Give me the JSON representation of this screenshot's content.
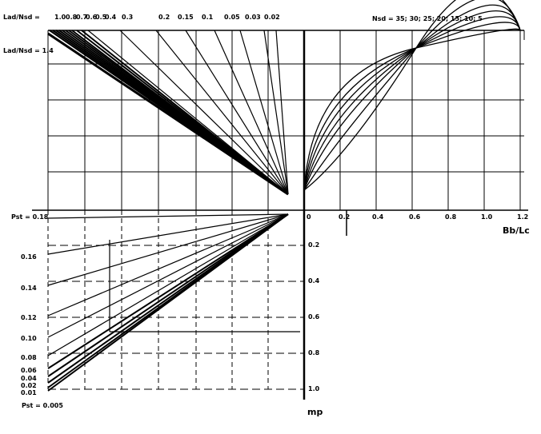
{
  "top_left": {
    "ratio_label_1": "Lad/Nsd =",
    "ratio_label_2": "Lad/Nsd = 1.4",
    "ratio_values": [
      "1.0",
      "0.8",
      "0.7",
      "0.6",
      "0.5",
      "0.4",
      "0.3",
      "0.2",
      "0.15",
      "0.1",
      "0.05",
      "0.03",
      "0.02"
    ]
  },
  "top_right": {
    "n_label": "Nsd = 35; 30; 25; 20; 15;      10;         5"
  },
  "horizontal_axis": {
    "ticks": [
      "0",
      "0.2",
      "0.4",
      "0.6",
      "0.8",
      "1.0",
      "1.2"
    ],
    "label": "Bb/Lc"
  },
  "vertical_axis": {
    "ticks": [
      "0.2",
      "0.4",
      "0.6",
      "0.8",
      "1.0"
    ],
    "label": "mp"
  },
  "left_scale": {
    "ticks": [
      "Pst = 0.18",
      "0.16",
      "0.14",
      "0.12",
      "0.10",
      "0.08",
      "0.06",
      "0.04",
      "0.02",
      "0.01"
    ],
    "bottom_label": "Pst = 0.005"
  },
  "colors": {
    "ink": "#000000",
    "paper": "#ffffff"
  }
}
